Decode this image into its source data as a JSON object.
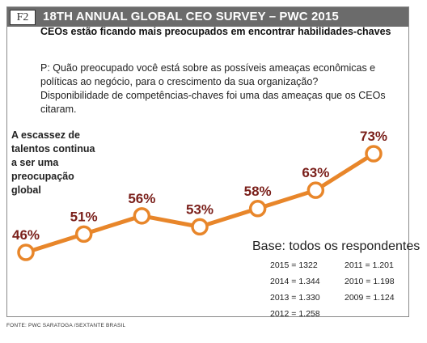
{
  "header": {
    "tag": "F2",
    "title": "18TH ANNUAL GLOBAL CEO SURVEY – PWC 2015"
  },
  "subtitle": "CEOs estão ficando mais preocupados em encontrar habilidades-chaves",
  "question": "P: Quão preocupado você está sobre as possíveis ameaças econômicas e políticas ao negócio,  para o crescimento da sua organização? Disponibilidade de competências-chaves foi uma das ameaças que os CEOs citaram.",
  "annotation": "A escassez de talentos continua a ser uma preocupação global",
  "base": {
    "title": "Base: todos os respondentes",
    "rows": [
      "2015 = 1322",
      "2014 = 1.344",
      "2013 = 1.330",
      "2012 = 1.258",
      "2011 = 1.201",
      "2010 = 1.198",
      "2009 = 1.124"
    ]
  },
  "source": "FONTE: PWC SARATOGA /SEXTANTE BRASIL",
  "colors": {
    "line": "#e8862a",
    "label": "#7a1f1a",
    "header": "#6b6b6b"
  },
  "chart_data": {
    "type": "line",
    "values": [
      46,
      51,
      56,
      53,
      58,
      63,
      73
    ],
    "labels": [
      "46%",
      "51%",
      "56%",
      "53%",
      "58%",
      "63%",
      "73%"
    ],
    "annotation": "A escassez de talentos continua a ser uma preocupação global"
  }
}
